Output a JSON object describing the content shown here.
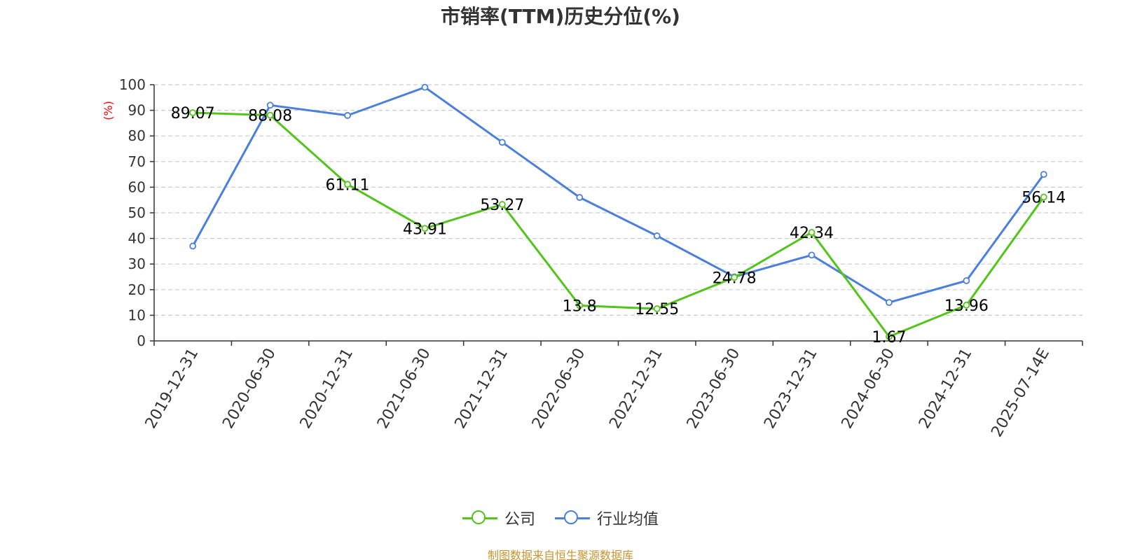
{
  "title": "市销率(TTM)历史分位(%)",
  "y_unit": "(%)",
  "source": "制图数据来自恒生聚源数据库",
  "colors": {
    "company": "#52c41a",
    "industry": "#4a7fde",
    "grid": "#cccccc",
    "axis": "#333333",
    "unit": "#ff0000",
    "source": "#c8952e"
  },
  "legend": {
    "company_label": "公司",
    "industry_label": "行业均值"
  },
  "chart_data": {
    "type": "line",
    "title": "市销率(TTM)历史分位(%)",
    "ylabel": "(%)",
    "xlabel": "",
    "ylim": [
      0,
      100
    ],
    "yticks": [
      0,
      10,
      20,
      30,
      40,
      50,
      60,
      70,
      80,
      90,
      100
    ],
    "grid": true,
    "legend_position": "bottom-center",
    "categories": [
      "2019-12-31",
      "2020-06-30",
      "2020-12-31",
      "2021-06-30",
      "2021-12-31",
      "2022-06-30",
      "2022-12-31",
      "2023-06-30",
      "2023-12-31",
      "2024-06-30",
      "2024-12-31",
      "2025-07-14E"
    ],
    "series": [
      {
        "name": "公司",
        "color": "#52c41a",
        "values": [
          89.07,
          88.08,
          61.11,
          43.91,
          53.27,
          13.8,
          12.55,
          24.78,
          42.34,
          1.67,
          13.96,
          56.14
        ],
        "labels": [
          "89.07",
          "88.08",
          "61.11",
          "43.91",
          "53.27",
          "13.8",
          "12.55",
          "24.78",
          "42.34",
          "1.67",
          "13.96",
          "56.14"
        ],
        "show_labels": true
      },
      {
        "name": "行业均值",
        "color": "#4a7fde",
        "values": [
          37,
          92,
          88,
          99,
          77.5,
          56,
          41,
          25,
          33.5,
          15,
          23.5,
          65
        ],
        "show_labels": false
      }
    ]
  }
}
